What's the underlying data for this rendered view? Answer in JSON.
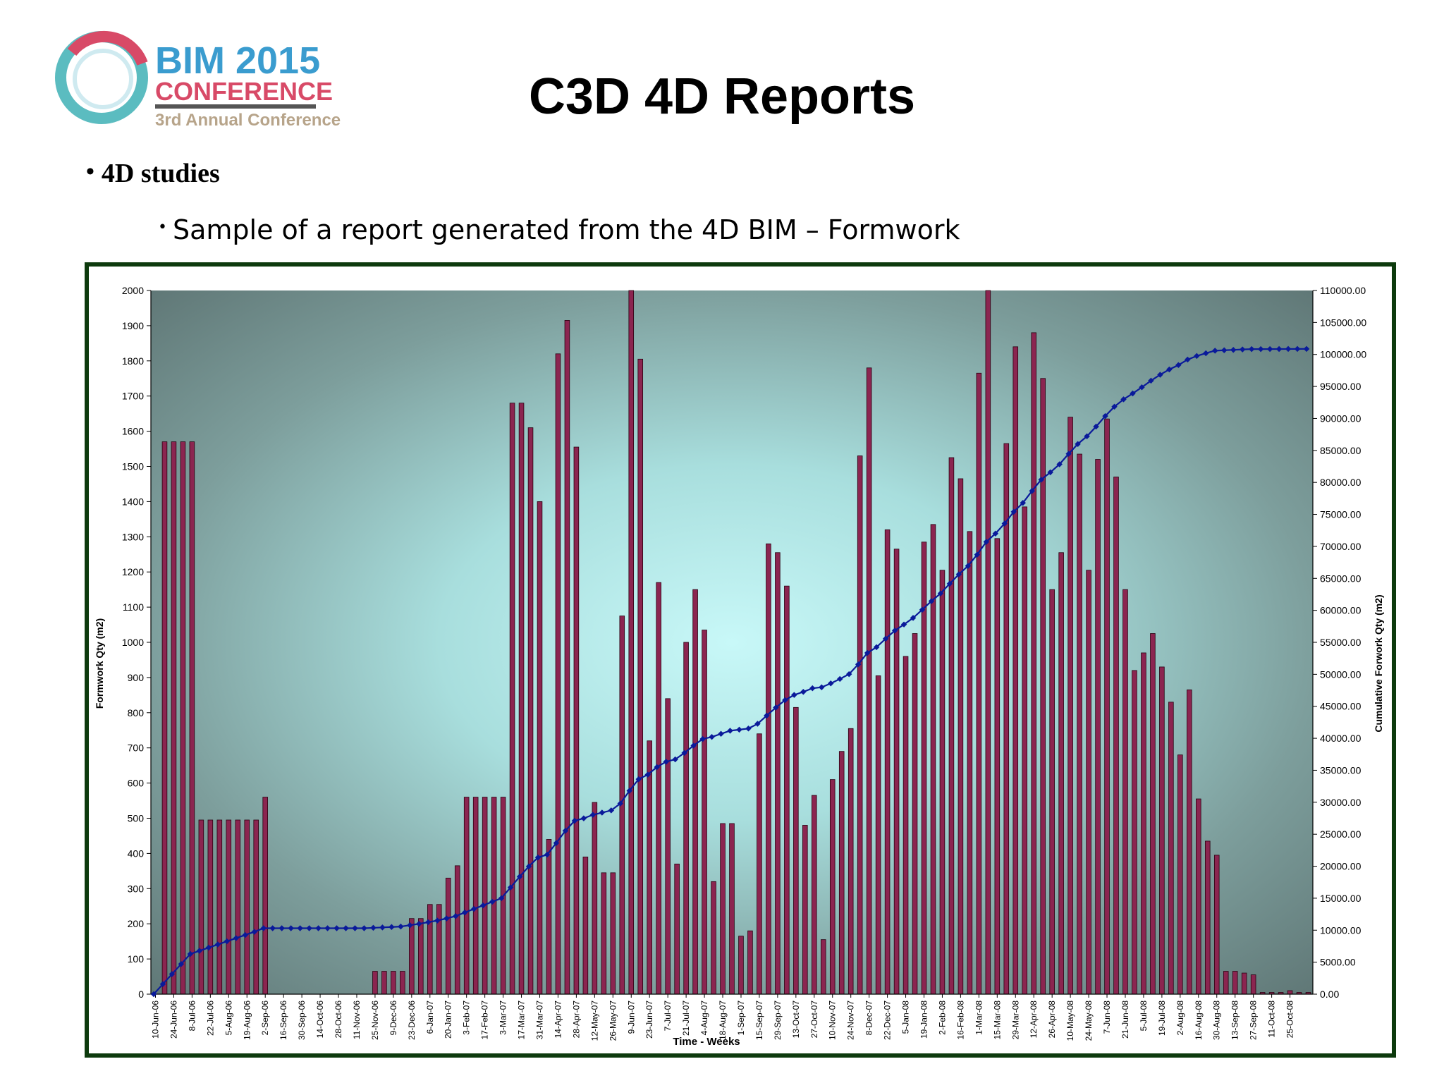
{
  "logo": {
    "line1": "BIM 2015",
    "line2": "CONFERENCE",
    "line3": "3rd Annual Conference"
  },
  "slide_title": "C3D 4D Reports",
  "bullets": {
    "level1": "4D studies",
    "level2": "Sample of a report generated from the 4D BIM – Formwork"
  },
  "colors": {
    "frame": "#0d3a0d",
    "bar": "#8b2550",
    "line": "#0a1a9a",
    "plot_edge": "#5e7c7b",
    "plot_center": "#c8f8f8"
  },
  "chart_data": {
    "type": "bar",
    "xlabel": "Time - Weeks",
    "ylabel": "Formwork Qty (m2)",
    "y2label": "Cumulative Forwork Qty (m2)",
    "ylim": [
      0,
      2000
    ],
    "yticks": [
      "0",
      "100",
      "200",
      "300",
      "400",
      "500",
      "600",
      "700",
      "800",
      "900",
      "1000",
      "1100",
      "1200",
      "1300",
      "1400",
      "1500",
      "1600",
      "1700",
      "1800",
      "1900",
      "2000"
    ],
    "y2lim": [
      0,
      110000
    ],
    "y2ticks": [
      "0.00",
      "5000.00",
      "10000.00",
      "15000.00",
      "20000.00",
      "25000.00",
      "30000.00",
      "35000.00",
      "40000.00",
      "45000.00",
      "50000.00",
      "55000.00",
      "60000.00",
      "65000.00",
      "70000.00",
      "75000.00",
      "80000.00",
      "85000.00",
      "90000.00",
      "95000.00",
      "100000.00",
      "105000.00",
      "110000.00"
    ],
    "tick_labels": [
      "10-Jun-06",
      "24-Jun-06",
      "8-Jul-06",
      "22-Jul-06",
      "5-Aug-06",
      "19-Aug-06",
      "2-Sep-06",
      "16-Sep-06",
      "30-Sep-06",
      "14-Oct-06",
      "28-Oct-06",
      "11-Nov-06",
      "25-Nov-06",
      "9-Dec-06",
      "23-Dec-06",
      "6-Jan-07",
      "20-Jan-07",
      "3-Feb-07",
      "17-Feb-07",
      "3-Mar-07",
      "17-Mar-07",
      "31-Mar-07",
      "14-Apr-07",
      "28-Apr-07",
      "12-May-07",
      "26-May-07",
      "9-Jun-07",
      "23-Jun-07",
      "7-Jul-07",
      "21-Jul-07",
      "4-Aug-07",
      "18-Aug-07",
      "1-Sep-07",
      "15-Sep-07",
      "29-Sep-07",
      "13-Oct-07",
      "27-Oct-07",
      "10-Nov-07",
      "24-Nov-07",
      "8-Dec-07",
      "22-Dec-07",
      "5-Jan-08",
      "19-Jan-08",
      "2-Feb-08",
      "16-Feb-08",
      "1-Mar-08",
      "15-Mar-08",
      "29-Mar-08",
      "12-Apr-08",
      "26-Apr-08",
      "10-May-08",
      "24-May-08",
      "7-Jun-08",
      "21-Jun-08",
      "5-Jul-08",
      "19-Jul-08",
      "2-Aug-08",
      "16-Aug-08",
      "30-Aug-08",
      "13-Sep-08",
      "27-Sep-08",
      "11-Oct-08",
      "25-Oct-08"
    ],
    "bar_series": {
      "name": "Formwork Qty (m2)",
      "values": [
        0,
        1570,
        1570,
        1570,
        1570,
        495,
        495,
        495,
        495,
        495,
        495,
        495,
        560,
        0,
        0,
        0,
        0,
        0,
        0,
        0,
        0,
        0,
        0,
        0,
        65,
        65,
        65,
        65,
        215,
        215,
        255,
        255,
        330,
        365,
        560,
        560,
        560,
        560,
        560,
        1680,
        1680,
        1610,
        1400,
        440,
        1820,
        1915,
        1555,
        390,
        545,
        345,
        345,
        1075,
        2000,
        1805,
        720,
        1170,
        840,
        370,
        1000,
        1150,
        1035,
        320,
        485,
        485,
        165,
        180,
        740,
        1280,
        1255,
        1160,
        815,
        480,
        565,
        155,
        610,
        690,
        755,
        1530,
        1780,
        905,
        1320,
        1265,
        960,
        1025,
        1285,
        1335,
        1205,
        1525,
        1465,
        1315,
        1765,
        2000,
        1295,
        1565,
        1840,
        1385,
        1880,
        1750,
        1150,
        1255,
        1640,
        1535,
        1205,
        1520,
        1635,
        1470,
        1150,
        920,
        970,
        1025,
        930,
        830,
        680,
        865,
        555,
        435,
        395,
        65,
        65,
        60,
        55,
        5,
        5,
        5,
        10,
        5,
        5
      ]
    },
    "line_series": {
      "name": "Cumulative Forwork Qty (m2)",
      "values": [
        0,
        1570,
        3140,
        4710,
        6280,
        6775,
        7270,
        7765,
        8260,
        8755,
        9250,
        9745,
        10305,
        10305,
        10305,
        10305,
        10305,
        10305,
        10305,
        10305,
        10305,
        10305,
        10305,
        10305,
        10370,
        10435,
        10500,
        10565,
        10780,
        10995,
        11250,
        11505,
        11835,
        12200,
        12760,
        13320,
        13880,
        14440,
        15000,
        16680,
        18360,
        19970,
        21370,
        21810,
        23630,
        25545,
        27100,
        27490,
        28035,
        28380,
        28725,
        29800,
        31800,
        33605,
        34325,
        35495,
        36335,
        36705,
        37705,
        38855,
        39890,
        40210,
        40695,
        41180,
        41345,
        41525,
        42265,
        43545,
        44800,
        45960,
        46775,
        47255,
        47820,
        47975,
        48585,
        49275,
        50030,
        51560,
        53340,
        54245,
        55565,
        56830,
        57790,
        58815,
        60100,
        61435,
        62640,
        64165,
        65630,
        66945,
        68710,
        70710,
        72005,
        73570,
        75410,
        76795,
        78675,
        80425,
        81575,
        82830,
        84470,
        86005,
        87210,
        88730,
        90365,
        91835,
        92985,
        93905,
        94875,
        95900,
        96830,
        97660,
        98340,
        99205,
        99760,
        100195,
        100590,
        100655,
        100720,
        100780,
        100835,
        100840,
        100845,
        100850,
        100860,
        100865,
        100870
      ]
    },
    "grid": false,
    "legend": "none"
  }
}
